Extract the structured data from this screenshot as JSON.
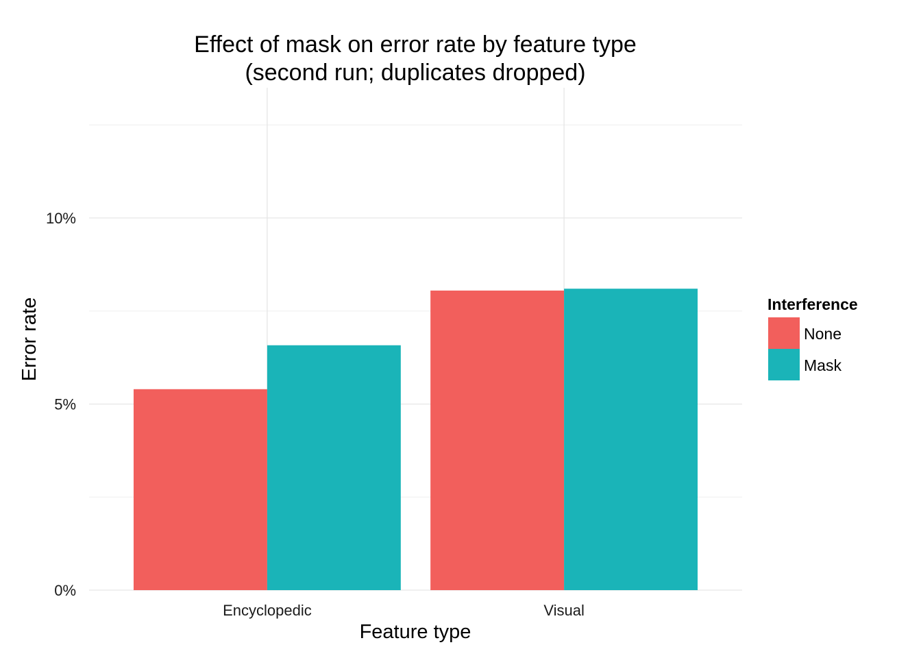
{
  "chart_data": {
    "type": "bar",
    "title": "Effect of mask on error rate by feature type",
    "subtitle": "(second run; duplicates dropped)",
    "xlabel": "Feature type",
    "ylabel": "Error rate",
    "categories": [
      "Encyclopedic",
      "Visual"
    ],
    "series": [
      {
        "name": "None",
        "color": "#f25f5c",
        "values": [
          5.4,
          8.05
        ]
      },
      {
        "name": "Mask",
        "color": "#1ab4b8",
        "values": [
          6.58,
          8.1
        ]
      }
    ],
    "ylim": [
      0,
      13.5
    ],
    "y_ticks": [
      {
        "value": 0,
        "label": "0%"
      },
      {
        "value": 5,
        "label": "5%"
      },
      {
        "value": 10,
        "label": "10%"
      }
    ],
    "y_minor_ticks": [
      2.5,
      7.5,
      12.5
    ],
    "grid": true,
    "legend": {
      "title": "Interference",
      "position": "right"
    }
  }
}
